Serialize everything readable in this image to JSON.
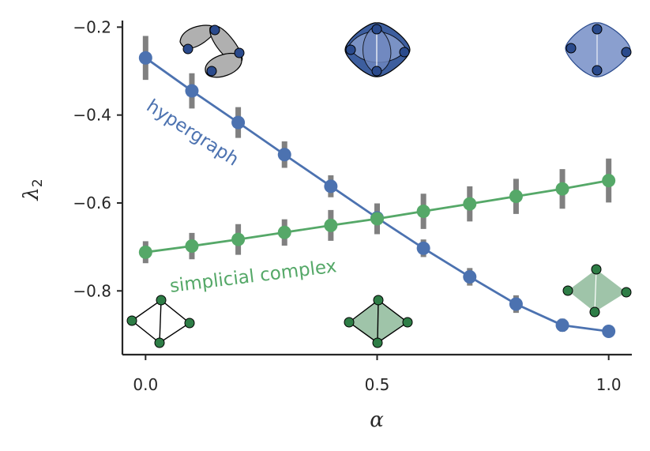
{
  "chart_data": {
    "type": "line",
    "xlabel": "α",
    "ylabel": "λ",
    "ylabel_sub": "2",
    "xlim": [
      -0.05,
      1.05
    ],
    "ylim": [
      -0.945,
      -0.185
    ],
    "xticks": [
      0.0,
      0.5,
      1.0
    ],
    "xtick_labels": [
      "0.0",
      "0.5",
      "1.0"
    ],
    "yticks": [
      -0.2,
      -0.4,
      -0.6,
      -0.8
    ],
    "ytick_labels": [
      "−0.2",
      "−0.4",
      "−0.6",
      "−0.8"
    ],
    "grid": false,
    "x": [
      0.0,
      0.1,
      0.2,
      0.3,
      0.4,
      0.5,
      0.6,
      0.7,
      0.8,
      0.9,
      1.0
    ],
    "series": [
      {
        "name": "hypergraph",
        "color": "#4c72b0",
        "values": [
          -0.27,
          -0.345,
          -0.417,
          -0.49,
          -0.562,
          -0.634,
          -0.703,
          -0.768,
          -0.83,
          -0.878,
          -0.892
        ],
        "err": [
          0.05,
          0.04,
          0.035,
          0.03,
          0.025,
          0.03,
          0.02,
          0.02,
          0.02,
          0.015,
          0.005
        ]
      },
      {
        "name": "simplicial complex",
        "color": "#55a868",
        "values": [
          -0.712,
          -0.698,
          -0.683,
          -0.667,
          -0.651,
          -0.636,
          -0.619,
          -0.602,
          -0.585,
          -0.568,
          -0.549
        ],
        "err": [
          0.025,
          0.03,
          0.035,
          0.03,
          0.035,
          0.035,
          0.04,
          0.04,
          0.04,
          0.045,
          0.05
        ]
      }
    ],
    "errorbar_color": "#808080",
    "insets": {
      "hypergraph_colors": {
        "light": "#b0b0b0",
        "mid": "#8a9fcf",
        "dark": "#2a4a8c"
      },
      "simplicial_colors": {
        "node": "#2e7d46",
        "fill": "#9fc4a9"
      }
    }
  }
}
